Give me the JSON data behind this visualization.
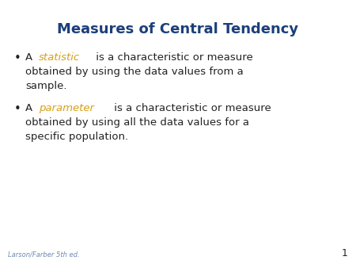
{
  "title": "Measures of Central Tendency",
  "title_color": "#1B3F7A",
  "title_fontsize": 13,
  "background_color": "#FFFFFF",
  "text_color": "#222222",
  "highlight_color": "#D4A017",
  "body_fontsize": 9.5,
  "footer_text": "Larson/Farber 5th ed.",
  "footer_color": "#6E8BB5",
  "footer_fontsize": 6,
  "page_number": "1",
  "page_color": "#222222",
  "page_fontsize": 9,
  "bullet_symbol": "•",
  "bullet1_before": "A ",
  "bullet1_word": "statistic",
  "bullet1_after": " is a characteristic or measure",
  "bullet1_line2": "obtained by using the data values from a",
  "bullet1_line3": "sample.",
  "bullet2_before": "A ",
  "bullet2_word": "parameter",
  "bullet2_after": " is a characteristic or measure",
  "bullet2_line2": "obtained by using all the data values for a",
  "bullet2_line3": "specific population."
}
